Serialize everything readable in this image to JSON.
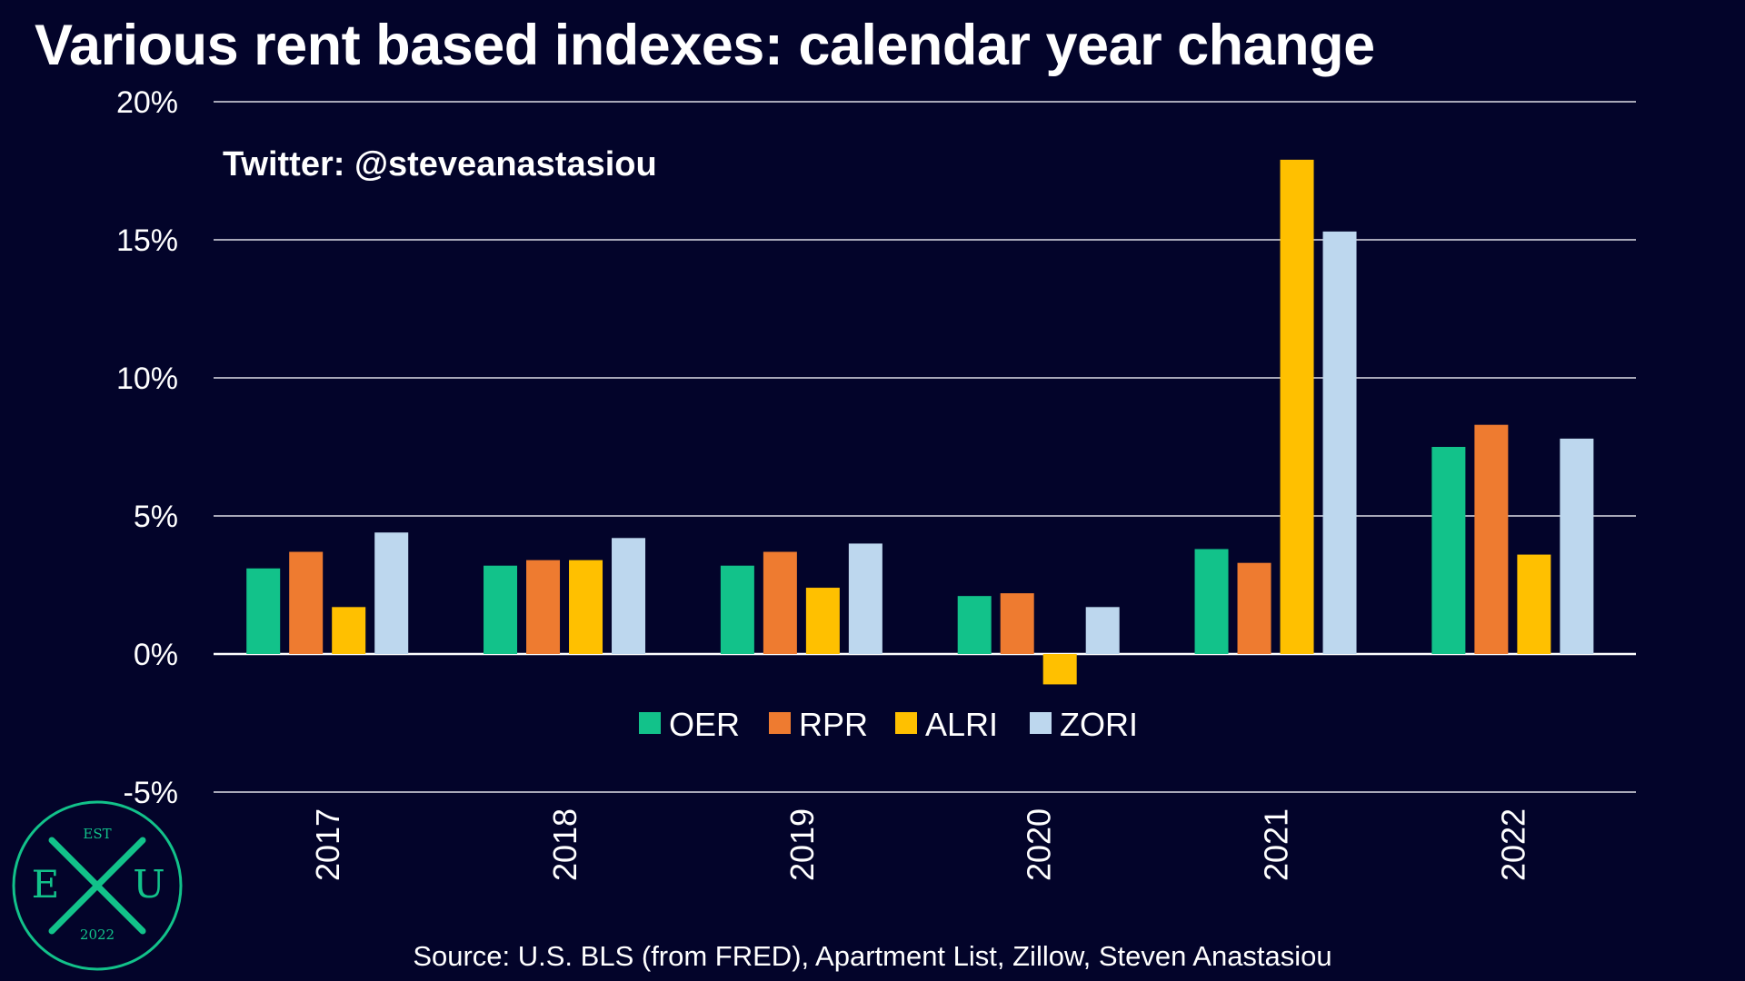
{
  "title": "Various rent based indexes: calendar year change",
  "watermark": "Twitter: @steveanastasiou",
  "source": "Source: U.S. BLS (from FRED), Apartment List, Zillow, Steven Anastasiou",
  "logo": {
    "top": "EST",
    "left": "E",
    "right": "U",
    "bottom": "2022"
  },
  "colors": {
    "background": "#03042a",
    "grid": "#a8a8b8"
  },
  "chart_data": {
    "type": "bar",
    "title": "Various rent based indexes: calendar year change",
    "categories": [
      "2017",
      "2018",
      "2019",
      "2020",
      "2021",
      "2022"
    ],
    "series": [
      {
        "name": "OER",
        "color": "#12c28a",
        "values": [
          3.1,
          3.2,
          3.2,
          2.1,
          3.8,
          7.5
        ]
      },
      {
        "name": "RPR",
        "color": "#ee7b30",
        "values": [
          3.7,
          3.4,
          3.7,
          2.2,
          3.3,
          8.3
        ]
      },
      {
        "name": "ALRI",
        "color": "#ffc000",
        "values": [
          1.7,
          3.4,
          2.4,
          -1.1,
          17.9,
          3.6
        ]
      },
      {
        "name": "ZORI",
        "color": "#bdd7ee",
        "values": [
          4.4,
          4.2,
          4.0,
          1.7,
          15.3,
          7.8
        ]
      }
    ],
    "y_ticks": [
      "20%",
      "15%",
      "10%",
      "5%",
      "0%",
      "-5%"
    ],
    "y_tick_values": [
      20,
      15,
      10,
      5,
      0,
      -5
    ],
    "ylim": [
      -5,
      20
    ],
    "grid": true,
    "legend": "center, inside plot below zero line"
  }
}
